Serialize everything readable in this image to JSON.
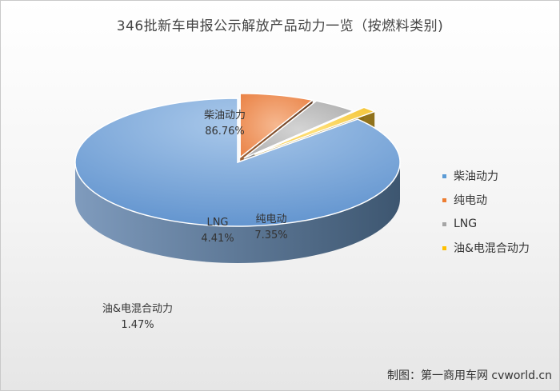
{
  "chart_data": {
    "type": "pie",
    "title": "346批新车申报公示解放产品动力一览（按燃料类别)",
    "categories": [
      "柴油动力",
      "纯电动",
      "LNG",
      "油&电混合动力"
    ],
    "values": [
      86.76,
      7.35,
      4.41,
      1.47
    ],
    "value_labels": [
      "86.76%",
      "7.35%",
      "4.41%",
      "1.47%"
    ],
    "colors": [
      "#5b9bd5",
      "#ed7d31",
      "#a5a5a5",
      "#ffc000"
    ],
    "legend_position": "right",
    "style": "3d-exploded"
  },
  "credit": "制图：第一商用车网 cvworld.cn"
}
